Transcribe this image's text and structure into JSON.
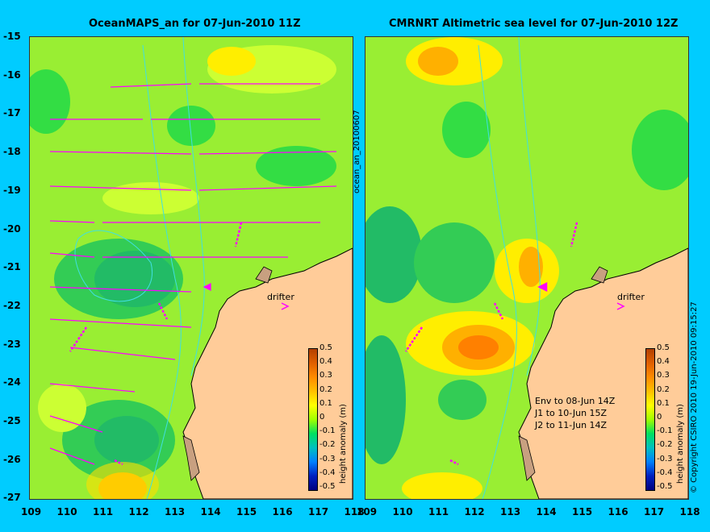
{
  "left_panel": {
    "title": "OceanMAPS_an for 07-Jun-2010 11Z",
    "side_label": "ocean_an_20100607",
    "drifter_label": "drifter"
  },
  "right_panel": {
    "title": "CMRNRT Altimetric sea level  for 07-Jun-2010 12Z",
    "drifter_label": "drifter",
    "notes": [
      "Env to 08-Jun 14Z",
      "J1 to 10-Jun 15Z",
      "J2 to 11-Jun 14Z"
    ],
    "copyright": "© Copyright CSIRO 2010   19-Jun-2010 09:15:27"
  },
  "colorbar": {
    "title": "height anomaly (m)",
    "ticks": [
      "0.5",
      "0.4",
      "0.3",
      "0.2",
      "0.1",
      "0",
      "-0.1",
      "-0.2",
      "-0.3",
      "-0.4",
      "-0.5"
    ],
    "colors": [
      "#b34000",
      "#e06000",
      "#ff8c00",
      "#ffc000",
      "#ffff00",
      "#a0ff00",
      "#00e060",
      "#00c0c0",
      "#0080ff",
      "#0020c0",
      "#000080"
    ]
  },
  "axes": {
    "y_ticks": [
      "-15",
      "-16",
      "-17",
      "-18",
      "-19",
      "-20",
      "-21",
      "-22",
      "-23",
      "-24",
      "-25",
      "-26",
      "-27"
    ],
    "x_ticks": [
      "109",
      "110",
      "111",
      "112",
      "113",
      "114",
      "115",
      "116",
      "117",
      "118"
    ]
  },
  "colors": {
    "land": "#ffcc99",
    "field_base": "#99ee33",
    "arrow": "#ff00ff",
    "contour": "#40e0e0"
  }
}
